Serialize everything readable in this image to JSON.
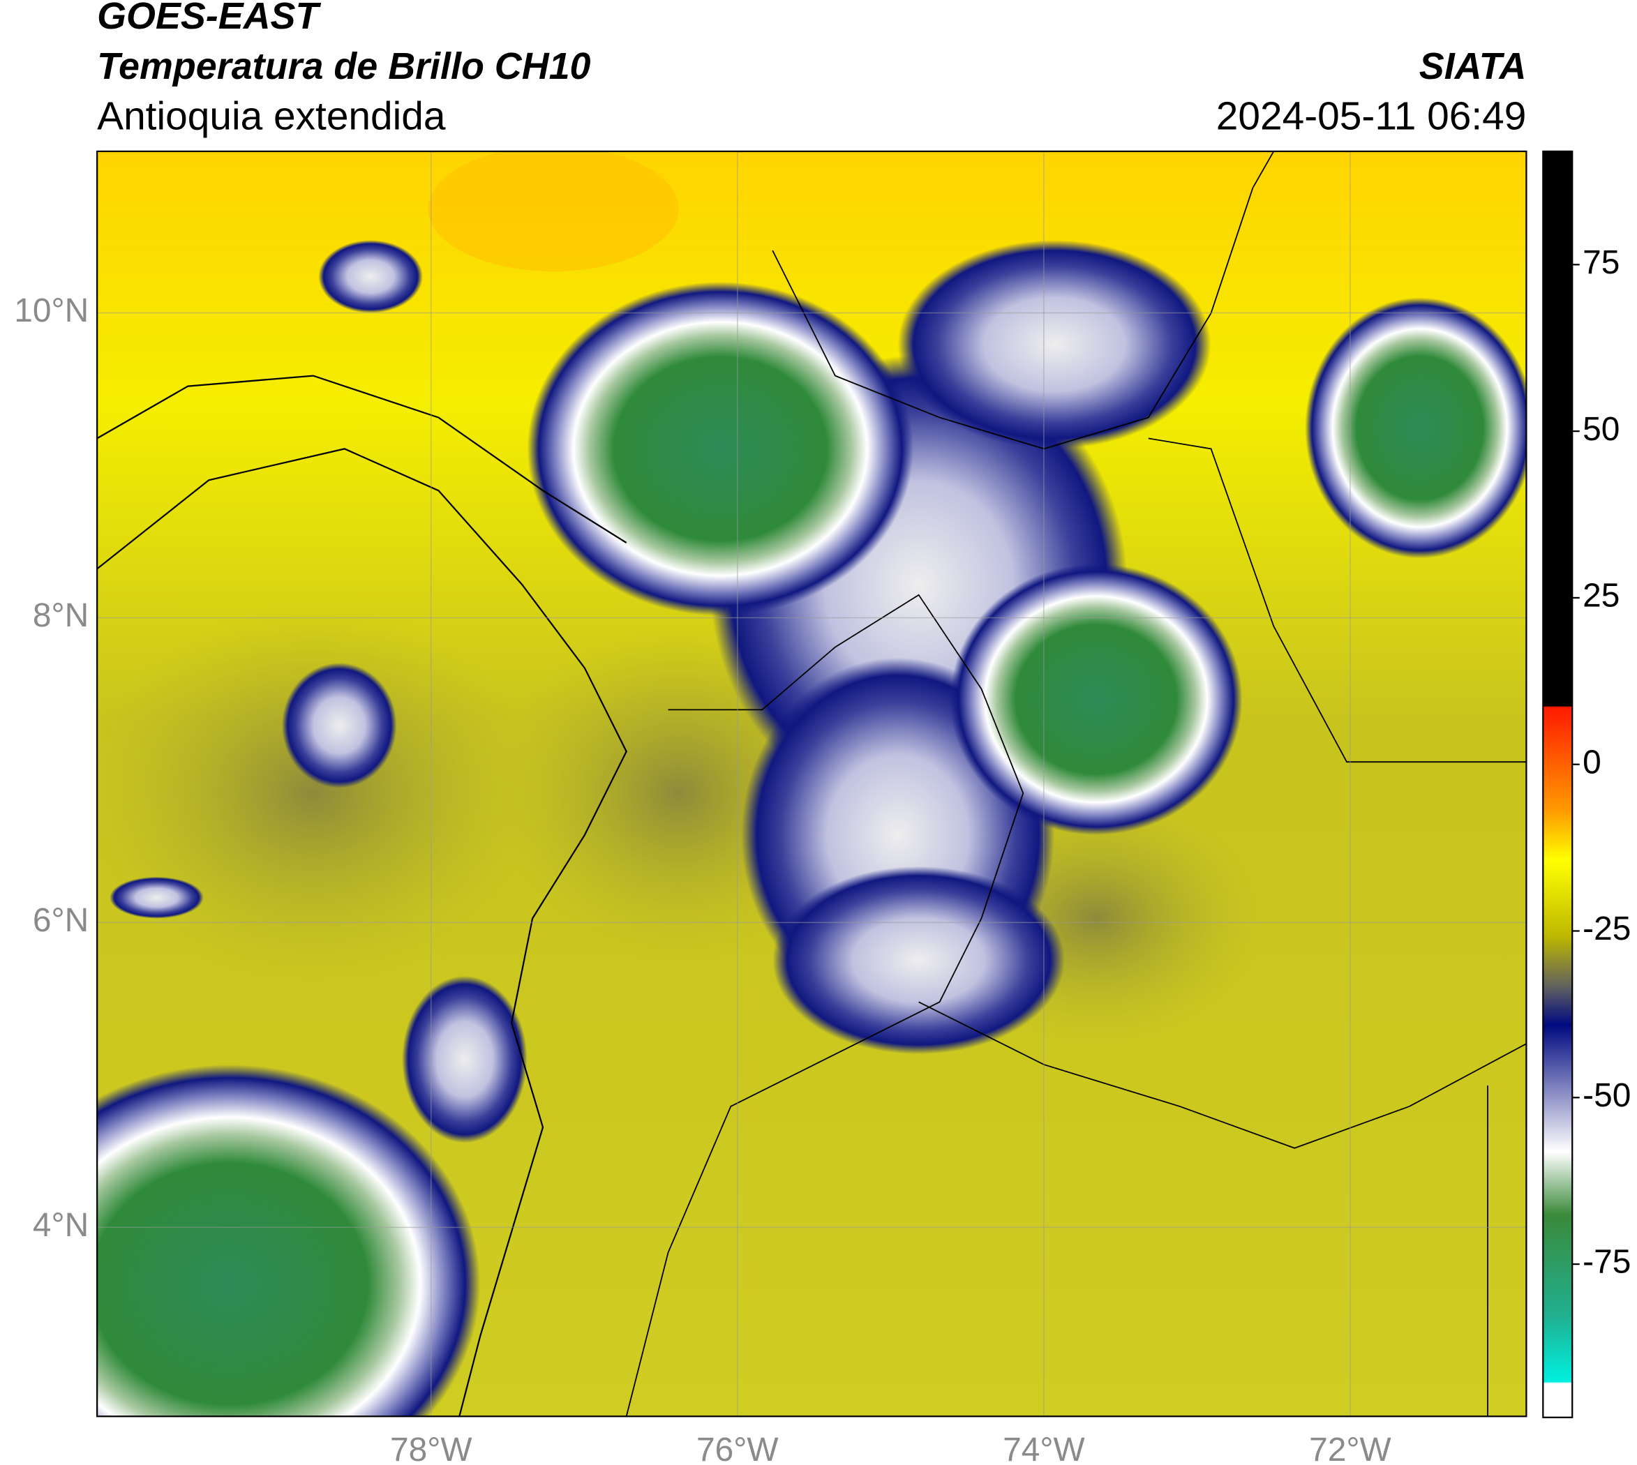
{
  "header": {
    "title_line1": "GOES-EAST",
    "title_line2": "Temperatura de Brillo CH10",
    "region": "Antioquia extendida",
    "source": "SIATA",
    "timestamp": "2024-05-11 06:49"
  },
  "map": {
    "latlim": [
      2.76,
      11.06
    ],
    "lonlim": [
      -80.18,
      -70.85
    ],
    "lat_ticks": [
      {
        "value": 4,
        "label": "4°N"
      },
      {
        "value": 6,
        "label": "6°N"
      },
      {
        "value": 8,
        "label": "8°N"
      },
      {
        "value": 10,
        "label": "10°N"
      }
    ],
    "lon_ticks": [
      {
        "value": -78,
        "label": "78°W"
      },
      {
        "value": -76,
        "label": "76°W"
      },
      {
        "value": -74,
        "label": "74°W"
      },
      {
        "value": -72,
        "label": "72°W"
      }
    ],
    "grid": true
  },
  "colorbar": {
    "lim": [
      -98,
      92
    ],
    "ticks": [
      75,
      50,
      25,
      0,
      -25,
      -50,
      -75
    ]
  }
}
